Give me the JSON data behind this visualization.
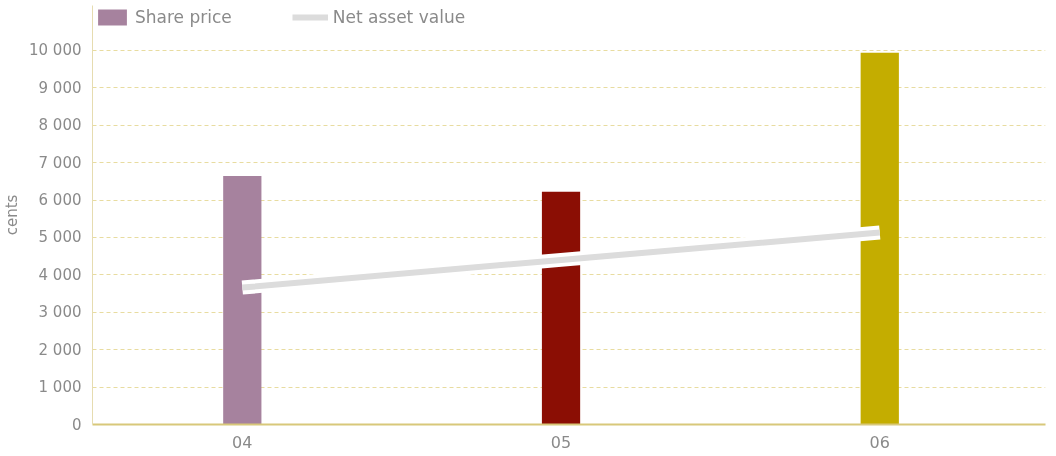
{
  "chart_data": {
    "type": "bar",
    "ylabel": "cents",
    "categories": [
      "04",
      "05",
      "06"
    ],
    "series": [
      {
        "name": "Share price",
        "colors": [
          "#a6829e",
          "#8b0e04",
          "#c4ad00"
        ],
        "values": [
          6640,
          6220,
          9940
        ]
      },
      {
        "name": "Net asset value",
        "type": "line",
        "color": "#dcdcdc",
        "values": [
          3660,
          4400,
          5130
        ]
      }
    ],
    "ylim": [
      0,
      11200
    ],
    "yticks": [
      {
        "value": 0,
        "label": "0"
      },
      {
        "value": 1000,
        "label": "1 000"
      },
      {
        "value": 2000,
        "label": "2 000"
      },
      {
        "value": 3000,
        "label": "3 000"
      },
      {
        "value": 4000,
        "label": "4 000"
      },
      {
        "value": 5000,
        "label": "5 000"
      },
      {
        "value": 6000,
        "label": "6 000"
      },
      {
        "value": 7000,
        "label": "7 000"
      },
      {
        "value": 8000,
        "label": "8 000"
      },
      {
        "value": 9000,
        "label": "9 000"
      },
      {
        "value": 10000,
        "label": "10 000"
      }
    ],
    "grid": "y",
    "legend": "top left",
    "line_style": "solid"
  }
}
